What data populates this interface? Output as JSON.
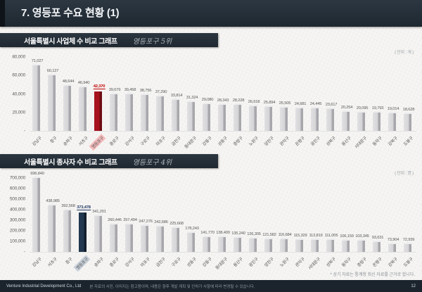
{
  "slide": {
    "title": "7. 영등포 수요 현황 (1)",
    "footnote": "* 상기 자료는 통계청 최신 자료를 근거로 합니다.",
    "footer_company": "Venture Industrial Development Co., Ltd",
    "footer_disclaimer": "본 자료의 사진, 이미지는 참고용이며, 내용은 향후 개발 계획 및 인허가 사항에 따라 변경될 수 있습니다.",
    "page_number": "12"
  },
  "colors": {
    "header_bar": "#232d37",
    "default_bar": "#d3d3d6",
    "business_highlight": "#a6121d",
    "worker_highlight": "#1f3347"
  },
  "chart_data": [
    {
      "type": "bar",
      "title": "서울특별시 사업체 수 비교 그래프",
      "rank_label": "영등포구 5위",
      "unit_label": "( 단위 : 개 )",
      "xlabel": "",
      "ylabel": "",
      "ylim": [
        0,
        80000
      ],
      "grid": false,
      "yticks": [
        "80,000",
        "60,000",
        "40,000",
        "20,000",
        "-"
      ],
      "ymax": 80000,
      "categories": [
        "강남구",
        "중구",
        "송파구",
        "서초구",
        "영등포구",
        "종로구",
        "강서구",
        "구로구",
        "마포구",
        "금천구",
        "동대문구",
        "강동구",
        "성동구",
        "중랑구",
        "노원구",
        "양천구",
        "관악구",
        "은평구",
        "광진구",
        "성북구",
        "용산구",
        "서대문구",
        "동작구",
        "강북구",
        "도봉구"
      ],
      "values": [
        71027,
        60127,
        48644,
        46940,
        42370,
        39679,
        39458,
        38756,
        37290,
        33814,
        31324,
        29080,
        28343,
        28228,
        26618,
        25894,
        25505,
        24681,
        24445,
        23617,
        20254,
        20095,
        19793,
        19014,
        18628
      ],
      "highlight": {
        "category": "영등포구",
        "index": 4,
        "bar_color": "#a6121d",
        "bar_side_color": "#6e0c14",
        "value_color": "#c00000",
        "label_bg": "#f4bcbd"
      }
    },
    {
      "type": "bar",
      "title": "서울특별시 종사자 수 비교 그래프",
      "rank_label": "영등포구 4위",
      "unit_label": "( 단위 : 명 )",
      "xlabel": "",
      "ylabel": "",
      "ylim": [
        0,
        700000
      ],
      "grid": false,
      "yticks": [
        "700,000",
        "600,000",
        "500,000",
        "400,000",
        "300,000",
        "200,000",
        "100,000",
        "-"
      ],
      "ymax": 700000,
      "categories": [
        "강남구",
        "서초구",
        "중구",
        "영등포구",
        "송파구",
        "종로구",
        "강서구",
        "마포구",
        "금천구",
        "구로구",
        "성동구",
        "강동구",
        "동대문구",
        "용산구",
        "광진구",
        "양천구",
        "노원구",
        "관악구",
        "서대문구",
        "성북구",
        "동작구",
        "중랑구",
        "은평구",
        "강북구",
        "도봉구"
      ],
      "values": [
        696840,
        438985,
        392568,
        373478,
        341201,
        260446,
        257494,
        247276,
        242686,
        225668,
        178243,
        141770,
        138400,
        135240,
        126305,
        121582,
        116684,
        115329,
        113819,
        111005,
        106159,
        103345,
        93631,
        73904,
        72939
      ],
      "highlight": {
        "category": "영등포구",
        "index": 3,
        "bar_color": "#223850",
        "bar_side_color": "#131f2d",
        "value_color": "#1f3864",
        "label_bg": "#c7d0d9"
      }
    }
  ]
}
